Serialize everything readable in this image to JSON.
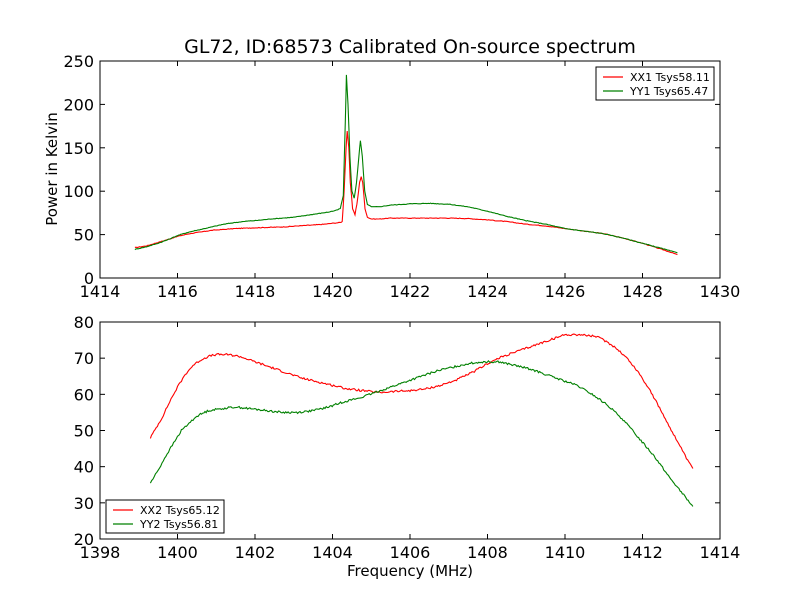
{
  "chart_data": [
    {
      "type": "line",
      "title": "GL72, ID:68573 Calibrated On-source spectrum",
      "xlabel": "",
      "ylabel": "Power in Kelvin",
      "xlim": [
        1414,
        1430
      ],
      "ylim": [
        0,
        250
      ],
      "xticks": [
        1414,
        1416,
        1418,
        1420,
        1422,
        1424,
        1426,
        1428,
        1430
      ],
      "yticks": [
        0,
        50,
        100,
        150,
        200,
        250
      ],
      "grid": false,
      "legend": "top-right",
      "series": [
        {
          "name": "XX1 Tsys58.11",
          "color": "#ff0000",
          "points": [
            [
              14.9,
              35
            ],
            [
              15.2,
              37
            ],
            [
              15.5,
              41
            ],
            [
              15.8,
              45
            ],
            [
              16.0,
              48
            ],
            [
              16.3,
              51
            ],
            [
              16.6,
              53
            ],
            [
              16.9,
              55
            ],
            [
              17.2,
              56
            ],
            [
              17.5,
              57
            ],
            [
              17.8,
              57.5
            ],
            [
              18.1,
              58
            ],
            [
              18.5,
              58.5
            ],
            [
              18.8,
              59
            ],
            [
              19.1,
              60
            ],
            [
              19.5,
              61
            ],
            [
              19.8,
              62
            ],
            [
              20.0,
              63
            ],
            [
              20.2,
              64
            ],
            [
              20.25,
              65
            ],
            [
              20.3,
              100
            ],
            [
              20.35,
              150
            ],
            [
              20.38,
              169
            ],
            [
              20.42,
              150
            ],
            [
              20.46,
              110
            ],
            [
              20.52,
              80
            ],
            [
              20.58,
              73
            ],
            [
              20.63,
              85
            ],
            [
              20.7,
              110
            ],
            [
              20.74,
              117
            ],
            [
              20.78,
              110
            ],
            [
              20.84,
              80
            ],
            [
              20.9,
              70
            ],
            [
              21.0,
              68
            ],
            [
              21.2,
              68
            ],
            [
              21.5,
              69
            ],
            [
              22.0,
              69
            ],
            [
              22.5,
              69
            ],
            [
              23.0,
              69
            ],
            [
              23.5,
              68.5
            ],
            [
              24.0,
              67
            ],
            [
              24.5,
              65
            ],
            [
              25.0,
              62
            ],
            [
              25.5,
              60
            ],
            [
              26.0,
              57
            ],
            [
              26.5,
              54
            ],
            [
              27.0,
              51
            ],
            [
              27.5,
              46
            ],
            [
              28.0,
              40
            ],
            [
              28.5,
              33
            ],
            [
              28.9,
              27
            ]
          ]
        },
        {
          "name": "YY1 Tsys65.47",
          "color": "#008000",
          "points": [
            [
              14.9,
              33
            ],
            [
              15.2,
              36
            ],
            [
              15.5,
              40
            ],
            [
              15.8,
              45
            ],
            [
              16.0,
              49
            ],
            [
              16.3,
              53
            ],
            [
              16.6,
              56
            ],
            [
              16.9,
              59
            ],
            [
              17.2,
              62
            ],
            [
              17.5,
              64
            ],
            [
              17.8,
              65.5
            ],
            [
              18.1,
              66.5
            ],
            [
              18.4,
              68
            ],
            [
              18.7,
              69
            ],
            [
              19.0,
              70
            ],
            [
              19.3,
              72
            ],
            [
              19.6,
              74
            ],
            [
              19.9,
              76
            ],
            [
              20.1,
              78
            ],
            [
              20.2,
              80
            ],
            [
              20.28,
              95
            ],
            [
              20.33,
              180
            ],
            [
              20.36,
              234
            ],
            [
              20.4,
              200
            ],
            [
              20.45,
              140
            ],
            [
              20.5,
              100
            ],
            [
              20.56,
              92
            ],
            [
              20.62,
              110
            ],
            [
              20.68,
              140
            ],
            [
              20.72,
              158
            ],
            [
              20.77,
              140
            ],
            [
              20.83,
              100
            ],
            [
              20.9,
              85
            ],
            [
              21.0,
              82
            ],
            [
              21.2,
              82
            ],
            [
              21.5,
              84
            ],
            [
              22.0,
              85.5
            ],
            [
              22.5,
              86
            ],
            [
              23.0,
              85
            ],
            [
              23.5,
              82
            ],
            [
              24.0,
              77
            ],
            [
              24.5,
              71
            ],
            [
              25.0,
              66
            ],
            [
              25.5,
              62
            ],
            [
              26.0,
              57
            ],
            [
              26.5,
              54
            ],
            [
              27.0,
              51
            ],
            [
              27.5,
              46
            ],
            [
              28.0,
              40
            ],
            [
              28.5,
              34
            ],
            [
              28.9,
              29
            ]
          ]
        }
      ]
    },
    {
      "type": "line",
      "title": "",
      "xlabel": "Frequency (MHz)",
      "ylabel": "",
      "xlim": [
        1398,
        1414
      ],
      "ylim": [
        20,
        80
      ],
      "xticks": [
        1398,
        1400,
        1402,
        1404,
        1406,
        1408,
        1410,
        1412,
        1414
      ],
      "yticks": [
        20,
        30,
        40,
        50,
        60,
        70,
        80
      ],
      "grid": false,
      "legend": "bottom-left",
      "series": [
        {
          "name": "XX2 Tsys65.12",
          "color": "#ff0000",
          "points": [
            [
              1399.3,
              48
            ],
            [
              1399.6,
              53.5
            ],
            [
              1399.8,
              58
            ],
            [
              1400.0,
              62
            ],
            [
              1400.2,
              65.5
            ],
            [
              1400.4,
              68
            ],
            [
              1400.6,
              69.5
            ],
            [
              1400.8,
              70.5
            ],
            [
              1401.0,
              71
            ],
            [
              1401.3,
              71
            ],
            [
              1401.6,
              70.5
            ],
            [
              1402.0,
              69
            ],
            [
              1402.4,
              67.5
            ],
            [
              1402.8,
              66
            ],
            [
              1403.2,
              64.5
            ],
            [
              1403.6,
              63.5
            ],
            [
              1404.0,
              62.5
            ],
            [
              1404.4,
              61.5
            ],
            [
              1404.8,
              61
            ],
            [
              1405.2,
              60.5
            ],
            [
              1405.6,
              60.8
            ],
            [
              1406.0,
              61
            ],
            [
              1406.4,
              61.5
            ],
            [
              1406.8,
              62.5
            ],
            [
              1407.2,
              64
            ],
            [
              1407.6,
              66
            ],
            [
              1408.0,
              68.5
            ],
            [
              1408.4,
              70.5
            ],
            [
              1408.8,
              72
            ],
            [
              1409.2,
              73.5
            ],
            [
              1409.6,
              75
            ],
            [
              1410.0,
              76.5
            ],
            [
              1410.4,
              76.5
            ],
            [
              1410.8,
              76
            ],
            [
              1411.0,
              75
            ],
            [
              1411.3,
              73
            ],
            [
              1411.6,
              70
            ],
            [
              1411.9,
              66
            ],
            [
              1412.2,
              61
            ],
            [
              1412.5,
              55
            ],
            [
              1412.8,
              49
            ],
            [
              1413.0,
              45
            ],
            [
              1413.2,
              41
            ],
            [
              1413.3,
              39.5
            ]
          ]
        },
        {
          "name": "YY2 Tsys56.81",
          "color": "#008000",
          "points": [
            [
              1399.3,
              35.5
            ],
            [
              1399.5,
              39
            ],
            [
              1399.7,
              43
            ],
            [
              1399.9,
              46.5
            ],
            [
              1400.1,
              50
            ],
            [
              1400.3,
              52
            ],
            [
              1400.5,
              54
            ],
            [
              1400.8,
              55.5
            ],
            [
              1401.1,
              56
            ],
            [
              1401.5,
              56.5
            ],
            [
              1401.9,
              56
            ],
            [
              1402.3,
              55.5
            ],
            [
              1402.7,
              55
            ],
            [
              1403.1,
              55
            ],
            [
              1403.5,
              55.5
            ],
            [
              1403.9,
              56.5
            ],
            [
              1404.3,
              58
            ],
            [
              1404.7,
              59
            ],
            [
              1405.1,
              60.5
            ],
            [
              1405.5,
              62
            ],
            [
              1405.9,
              63.5
            ],
            [
              1406.3,
              65
            ],
            [
              1406.7,
              66.5
            ],
            [
              1407.1,
              67.5
            ],
            [
              1407.5,
              68.5
            ],
            [
              1407.9,
              69
            ],
            [
              1408.3,
              69
            ],
            [
              1408.7,
              68
            ],
            [
              1409.1,
              67
            ],
            [
              1409.5,
              65.5
            ],
            [
              1409.9,
              64
            ],
            [
              1410.3,
              62.5
            ],
            [
              1410.7,
              60
            ],
            [
              1411.1,
              57
            ],
            [
              1411.5,
              53
            ],
            [
              1411.9,
              48
            ],
            [
              1412.3,
              43
            ],
            [
              1412.7,
              37
            ],
            [
              1413.0,
              33
            ],
            [
              1413.3,
              29
            ]
          ]
        }
      ]
    }
  ]
}
